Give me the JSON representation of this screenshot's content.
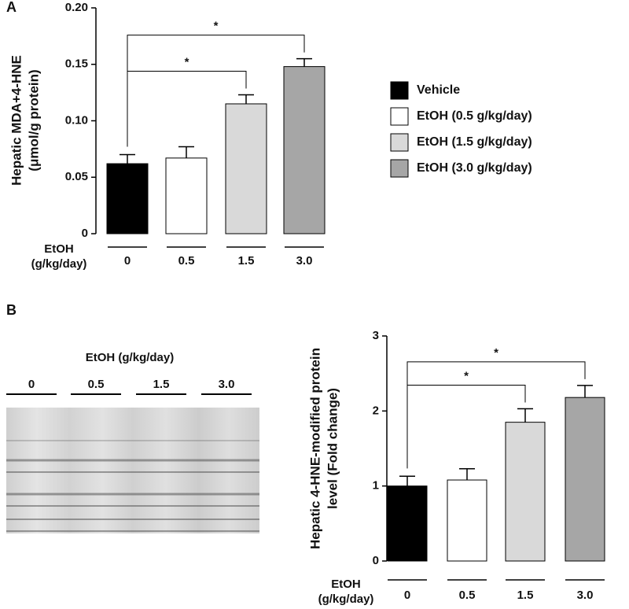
{
  "panel_labels": [
    "A",
    "B"
  ],
  "blot": {
    "title": "EtOH (g/kg/day)",
    "lanes": [
      "0",
      "0.5",
      "1.5",
      "3.0"
    ]
  },
  "chart_data": [
    {
      "type": "bar",
      "ylabel": [
        "Hepatic MDA+4-HNE",
        "(μmol/g protein)"
      ],
      "xlabel": [
        "EtOH",
        "(g/kg/day)"
      ],
      "categories": [
        "0",
        "0.5",
        "1.5",
        "3.0"
      ],
      "values": [
        0.062,
        0.067,
        0.115,
        0.148
      ],
      "errors": [
        0.008,
        0.01,
        0.008,
        0.007
      ],
      "colors": [
        "#000000",
        "#ffffff",
        "#d9d9d9",
        "#a6a6a6"
      ],
      "legend": [
        "Vehicle",
        "EtOH (0.5  g/kg/day)",
        "EtOH (1.5  g/kg/day)",
        "EtOH (3.0  g/kg/day)"
      ],
      "ylim": [
        0,
        0.2
      ],
      "yticks": [
        0,
        0.05,
        {
          "value": 0.1,
          "label": "0.10"
        },
        0.15,
        {
          "value": 0.2,
          "label": "0.20"
        }
      ],
      "annotations": [
        {
          "from": "0",
          "to": "1.5",
          "label": "*"
        },
        {
          "from": "0",
          "to": "3.0",
          "label": "*"
        }
      ]
    },
    {
      "type": "bar",
      "ylabel": [
        "Hepatic 4-HNE-modified protein",
        "level (Fold change)"
      ],
      "xlabel": [
        "EtOH",
        "(g/kg/day)"
      ],
      "categories": [
        "0",
        "0.5",
        "1.5",
        "3.0"
      ],
      "values": [
        1.0,
        1.08,
        1.85,
        2.18
      ],
      "errors": [
        0.13,
        0.15,
        0.18,
        0.16
      ],
      "colors": [
        "#000000",
        "#ffffff",
        "#d9d9d9",
        "#a6a6a6"
      ],
      "ylim": [
        0,
        3
      ],
      "yticks": [
        0,
        1,
        2,
        3
      ],
      "annotations": [
        {
          "from": "0",
          "to": "1.5",
          "label": "*"
        },
        {
          "from": "0",
          "to": "3.0",
          "label": "*"
        }
      ]
    }
  ]
}
